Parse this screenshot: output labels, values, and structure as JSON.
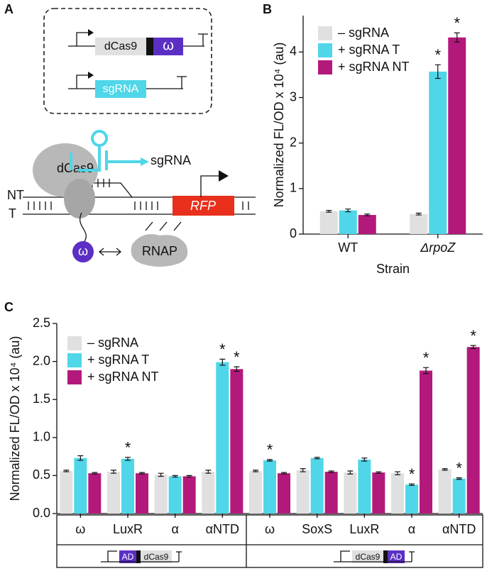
{
  "panels": [
    "A",
    "B",
    "C"
  ],
  "diagram": {
    "cassette_1": {
      "protein": "dCas9",
      "fusion": "ω"
    },
    "cassette_2": {
      "guide": "sgRNA"
    },
    "complex": {
      "guide": "sgRNA",
      "protein": "dCas9",
      "strand_nt": "NT",
      "strand_t": "T",
      "reporter": "RFP",
      "fusion": "ω",
      "polymerase": "RNAP"
    }
  },
  "chart_data": [
    {
      "type": "bar",
      "xlabel": "Strain",
      "ylabel": "Normalized FL/OD x 10⁴ (au)",
      "categories": [
        "WT",
        "ΔrpoZ"
      ],
      "series": [
        {
          "name": "– sgRNA",
          "color": "#e0e0e0",
          "values": [
            0.5,
            0.44
          ],
          "errors": [
            0.02,
            0.02
          ],
          "stars": [
            null,
            null
          ]
        },
        {
          "name": "+ sgRNA T",
          "color": "#4fd6e8",
          "values": [
            0.52,
            3.57
          ],
          "errors": [
            0.03,
            0.15
          ],
          "stars": [
            null,
            "*"
          ]
        },
        {
          "name": "+ sgRNA NT",
          "color": "#b3197b",
          "values": [
            0.42,
            4.32
          ],
          "errors": [
            0.02,
            0.1
          ],
          "stars": [
            null,
            "*"
          ]
        }
      ],
      "ylim": [
        0,
        4.8
      ],
      "yticks": [
        0,
        1,
        2,
        3,
        4
      ],
      "legend": "top-left"
    },
    {
      "type": "bar",
      "ylabel": "Normalized FL/OD x 10⁴ (au)",
      "categories": [
        "ω",
        "LuxR",
        "α",
        "αNTD",
        "ω",
        "SoxS",
        "LuxR",
        "α",
        "αNTD"
      ],
      "series": [
        {
          "name": "– sgRNA",
          "color": "#e0e0e0",
          "values": [
            0.56,
            0.55,
            0.51,
            0.55,
            0.56,
            0.57,
            0.54,
            0.53,
            0.58
          ],
          "errors": [
            0.01,
            0.02,
            0.02,
            0.02,
            0.01,
            0.02,
            0.02,
            0.02,
            0.01
          ],
          "stars": [
            null,
            null,
            null,
            null,
            null,
            null,
            null,
            null,
            null
          ]
        },
        {
          "name": "+ sgRNA T",
          "color": "#4fd6e8",
          "values": [
            0.73,
            0.72,
            0.49,
            1.99,
            0.7,
            0.73,
            0.71,
            0.38,
            0.46
          ],
          "errors": [
            0.03,
            0.02,
            0.01,
            0.04,
            0.01,
            0.01,
            0.02,
            0.01,
            0.01
          ],
          "stars": [
            null,
            "*",
            null,
            "*",
            "*",
            null,
            null,
            "*",
            "*"
          ]
        },
        {
          "name": "+ sgRNA NT",
          "color": "#b3197b",
          "values": [
            0.53,
            0.53,
            0.49,
            1.9,
            0.53,
            0.55,
            0.54,
            1.88,
            2.19
          ],
          "errors": [
            0.01,
            0.01,
            0.01,
            0.03,
            0.01,
            0.01,
            0.01,
            0.04,
            0.02
          ],
          "stars": [
            null,
            null,
            null,
            "*",
            null,
            null,
            null,
            "*",
            "*"
          ]
        }
      ],
      "ylim": [
        0,
        2.5
      ],
      "yticks": [
        {
          "value": 0,
          "label": "0.0"
        },
        0.5,
        {
          "value": 1,
          "label": "1.0"
        },
        1.5,
        {
          "value": 2,
          "label": "2.0"
        },
        2.5
      ],
      "legend": "top-left",
      "constructs": [
        {
          "domains": [
            "AD",
            "dCas9"
          ]
        },
        {
          "domains": [
            "dCas9",
            "AD"
          ]
        }
      ]
    }
  ]
}
